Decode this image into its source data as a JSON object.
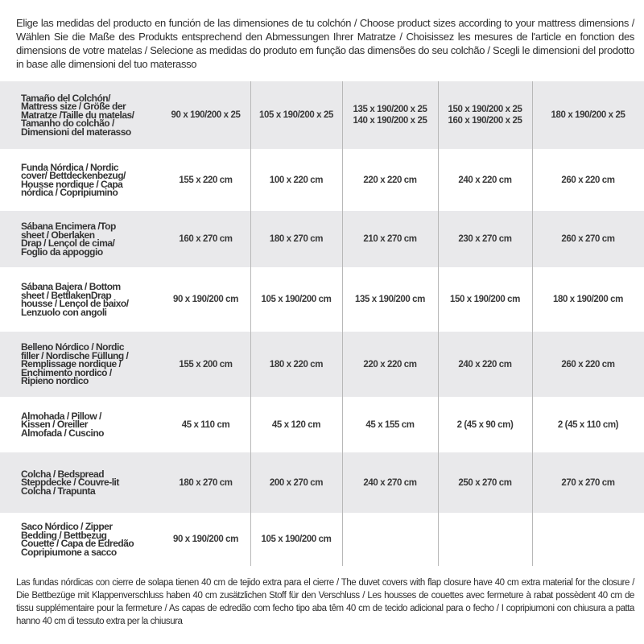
{
  "intro": "Elige las medidas del producto en función de las dimensiones de tu colchón / Choose product sizes according to your mattress dimensions / Wählen Sie die Maße des Produkts entsprechend den Abmessungen Ihrer Matratze / Choisissez les mesures de l'article en fonction des dimensions de votre matelas / Selecione as medidas do produto em função das dimensões do seu colchão / Scegli le dimensioni del prodotto in base alle dimensioni del tuo materasso",
  "colors": {
    "row_shade": "#e9e9eb",
    "text": "#333333",
    "divider": "#b8b8b8"
  },
  "table": {
    "rows": [
      {
        "label": "Tamaño del Colchón/\nMattress size / Größe der\nMatratze /Taille du matelas/\nTamanho do colchão /\nDimensioni del materasso",
        "values": [
          "90 x 190/200 x 25",
          "105 x 190/200 x 25",
          "135 x 190/200 x 25\n140 x 190/200 x 25",
          "150 x 190/200 x 25\n160 x 190/200 x 25",
          "180 x 190/200 x 25"
        ]
      },
      {
        "label": "Funda Nórdica /  Nordic\ncover/ Bettdeckenbezug/\nHousse nordique  / Capa\nnórdica / Copripiumino",
        "values": [
          "155 x 220 cm",
          "100 x 220 cm",
          "220 x 220 cm",
          "240 x 220 cm",
          "260 x 220 cm"
        ]
      },
      {
        "label": "Sábana Encimera /Top\nsheet / Oberlaken\nDrap / Lençol de cima/\nFoglio da appoggio",
        "values": [
          "160 x 270 cm",
          "180 x 270 cm",
          "210 x 270 cm",
          "230 x 270 cm",
          "260 x 270 cm"
        ]
      },
      {
        "label": "Sábana Bajera / Bottom\nsheet / BettlakenDrap\nhousse / Lençol de baixo/\nLenzuolo con angoli",
        "values": [
          "90 x 190/200 cm",
          "105 x 190/200 cm",
          "135 x 190/200 cm",
          "150 x 190/200 cm",
          "180 x 190/200 cm"
        ]
      },
      {
        "label": "Belleno Nórdico / Nordic\nfiller / Nordische Füllung /\nRemplissage nordique /\nEnchimento nordico /\nRipieno nordico",
        "values": [
          "155 x 200 cm",
          "180 x 220 cm",
          "220 x 220 cm",
          "240 x 220 cm",
          "260 x 220 cm"
        ]
      },
      {
        "label": "Almohada  / Pillow /\nKissen / Oreiller\nAlmofada / Cuscino",
        "values": [
          "45 x 110 cm",
          "45 x 120 cm",
          "45 x 155 cm",
          "2 (45 x 90 cm)",
          "2 (45 x 110 cm)"
        ]
      },
      {
        "label": "Colcha / Bedspread\nSteppdecke / Couvre-lit\nColcha / Trapunta",
        "values": [
          "180 x 270 cm",
          "200 x 270 cm",
          "240 x 270 cm",
          "250 x 270 cm",
          "270 x 270 cm"
        ]
      },
      {
        "label": "Saco Nórdico / Zipper\nBedding / Bettbezug\nCouette  / Capa de Edredão\nCopripiumone a sacco",
        "values": [
          "90 x 190/200 cm",
          "105 x 190/200 cm",
          "",
          "",
          ""
        ]
      }
    ]
  },
  "note": "Las fundas nórdicas con cierre de solapa tienen 40 cm de tejido extra para el cierre  / The duvet covers with flap closure have 40 cm extra material for the closure / Die Bettbezüge mit Klappenverschluss haben 40 cm zusätzlichen Stoff für den Verschluss / Les housses de couettes avec fermeture à rabat possèdent 40 cm de tissu supplémentaire pour la fermeture / As capas de edredão com fecho tipo aba têm 40 cm de tecido adicional para o fecho / I copripiumoni con chiusura a patta hanno 40 cm di tessuto extra per la chiusura"
}
